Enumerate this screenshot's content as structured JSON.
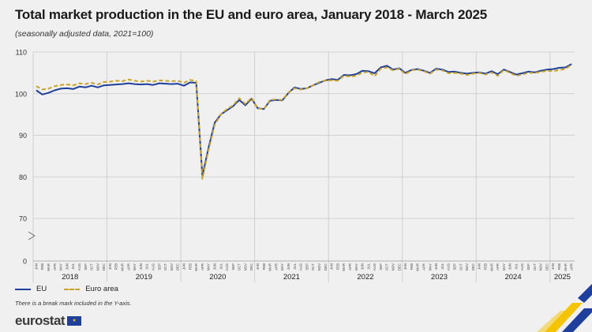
{
  "header": {
    "title": "Total market production in the EU and euro area, January 2018 - March 2025",
    "subtitle": "(seasonally adjusted data, 2021=100)"
  },
  "footer": {
    "note": "There is a break mark included in the Y-axis.",
    "logo": "eurostat"
  },
  "legend": {
    "eu": "EU",
    "ea": "Euro area"
  },
  "colors": {
    "eu": "#1f3f9c",
    "ea": "#c9a227",
    "grid": "#c8c8c8"
  },
  "icons": {
    "flag": "eu-flag-icon",
    "corner": "eurostat-ribbon-icon"
  },
  "chart_data": {
    "type": "line",
    "title": "Total market production in the EU and euro area, January 2018 - March 2025",
    "y_ticks": [
      0,
      70,
      80,
      90,
      100,
      110
    ],
    "y_break": "between 0 and 70",
    "ylim": [
      65,
      110
    ],
    "grid": true,
    "legend_position": "bottom-left",
    "month_labels": [
      "JAN",
      "FEB",
      "MAR",
      "APR",
      "MAY",
      "JUN",
      "JUL",
      "AUG",
      "SEP",
      "OCT",
      "NOV",
      "DEC"
    ],
    "years": [
      "2018",
      "2019",
      "2020",
      "2021",
      "2022",
      "2023",
      "2024",
      "2025"
    ],
    "x_start": "2018-01",
    "x_end": "2025-03",
    "series": [
      {
        "name": "EU",
        "values": [
          100.8,
          99.8,
          100.2,
          100.8,
          101.2,
          101.3,
          101.1,
          101.7,
          101.5,
          101.9,
          101.5,
          102.0,
          102.1,
          102.2,
          102.3,
          102.5,
          102.3,
          102.2,
          102.3,
          102.1,
          102.5,
          102.4,
          102.3,
          102.4,
          101.9,
          102.7,
          102.6,
          80.2,
          87.0,
          93.0,
          95.0,
          96.0,
          97.0,
          98.5,
          97.2,
          98.8,
          96.5,
          96.3,
          98.3,
          98.5,
          98.4,
          100.2,
          101.5,
          101.1,
          101.3,
          102.0,
          102.6,
          103.2,
          103.5,
          103.3,
          104.5,
          104.4,
          104.7,
          105.5,
          105.4,
          104.9,
          106.3,
          106.7,
          105.8,
          106.1,
          105.0,
          105.7,
          105.9,
          105.5,
          105.0,
          106.0,
          105.8,
          105.2,
          105.3,
          105.0,
          104.8,
          105.0,
          105.1,
          104.8,
          105.4,
          104.7,
          105.8,
          105.2,
          104.6,
          104.9,
          105.3,
          105.1,
          105.5,
          105.8,
          105.9,
          106.2,
          106.3,
          107.1
        ]
      },
      {
        "name": "Euro area",
        "values": [
          101.8,
          101.0,
          101.2,
          101.8,
          102.1,
          102.2,
          102.0,
          102.5,
          102.3,
          102.6,
          102.2,
          102.8,
          102.9,
          103.1,
          103.0,
          103.4,
          103.1,
          102.9,
          103.1,
          102.9,
          103.2,
          103.1,
          103.0,
          103.1,
          102.6,
          103.3,
          103.0,
          79.5,
          86.5,
          92.5,
          95.0,
          96.3,
          97.2,
          98.9,
          97.5,
          99.0,
          96.4,
          96.3,
          98.5,
          98.6,
          98.5,
          100.3,
          101.3,
          101.0,
          101.3,
          102.0,
          102.8,
          103.2,
          103.2,
          103.1,
          104.3,
          104.1,
          104.3,
          105.1,
          105.2,
          104.2,
          106.0,
          106.3,
          105.6,
          106.0,
          104.7,
          105.6,
          105.8,
          105.4,
          104.8,
          105.8,
          105.6,
          104.9,
          105.0,
          104.8,
          104.5,
          104.8,
          105.0,
          104.6,
          105.1,
          104.3,
          105.7,
          105.0,
          104.3,
          104.6,
          105.0,
          105.0,
          105.2,
          105.5,
          105.4,
          105.7,
          105.9,
          107.0
        ]
      }
    ]
  }
}
